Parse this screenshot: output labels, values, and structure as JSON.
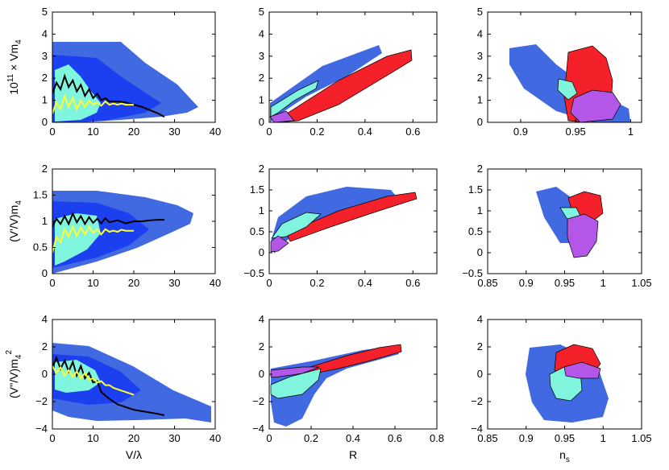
{
  "colors": {
    "blue_outer": "#4169e1",
    "blue_inner": "#1c3ff0",
    "cyan": "#7ff5de",
    "red": "#f4202a",
    "purple": "#b456e8",
    "line_black": "#000000",
    "line_yellow": "#ffff33",
    "frame": "#000000"
  },
  "chart_data": {
    "type": "grid-of-contour-panels",
    "rows": [
      {
        "ylabel": "10^11 × Vm_4",
        "ylabel_parts": {
          "base": "10",
          "sup": "11",
          "mid": " × Vm",
          "sub": "4"
        },
        "yticks": [
          "0",
          "1",
          "2",
          "3",
          "4",
          "5"
        ],
        "ylim": [
          0,
          5
        ],
        "col3_ylim": [
          0,
          5
        ],
        "col3_yticks": [
          "0",
          "1",
          "2",
          "3",
          "4",
          "5"
        ]
      },
      {
        "ylabel": "(V'/V)m_4",
        "ylabel_parts": {
          "base": "(V'/V)m",
          "sub": "4"
        },
        "yticks": [
          "0",
          "0.5",
          "1",
          "1.5",
          "2"
        ],
        "ylim": [
          0,
          2
        ],
        "col2_ylim": [
          -0.5,
          2
        ],
        "col2_yticks": [
          "−0.5",
          "0",
          "0.5",
          "1",
          "1.5",
          "2"
        ],
        "col3_ylim": [
          -0.5,
          2
        ],
        "col3_yticks": [
          "−0.5",
          "0",
          "0.5",
          "1",
          "1.5",
          "2"
        ]
      },
      {
        "ylabel": "(V''/V)m_4^2",
        "ylabel_parts": {
          "base": "(V''/V)m",
          "sub": "4",
          "sup": "2"
        },
        "yticks": [
          "−4",
          "−2",
          "0",
          "2",
          "4"
        ],
        "ylim": [
          -4,
          4
        ],
        "col3_ylim": [
          -4,
          4
        ],
        "col3_yticks": [
          "−4",
          "−2",
          "0",
          "2",
          "4"
        ]
      }
    ],
    "columns": [
      {
        "xlabel": "V/λ",
        "xlim": [
          0,
          40
        ],
        "xticks": [
          "0",
          "10",
          "20",
          "30",
          "40"
        ]
      },
      {
        "xlabel": "R",
        "xlim_rows12": [
          0,
          0.7
        ],
        "xticks_rows12": [
          "0",
          "0.2",
          "0.4",
          "0.6"
        ],
        "xlim_row3": [
          0,
          0.8
        ],
        "xticks_row3": [
          "0",
          "0.2",
          "0.4",
          "0.6",
          "0.8"
        ]
      },
      {
        "xlabel": "n_s",
        "xlabel_parts": {
          "base": "n",
          "sub": "s"
        },
        "xlim_row1": [
          0.87,
          1.01
        ],
        "xticks_row1": [
          "0.9",
          "0.95",
          "1"
        ],
        "xlim_rows23": [
          0.85,
          1.05
        ],
        "xticks_rows23": [
          "0.85",
          "0.9",
          "0.95",
          "1",
          "1.05"
        ]
      }
    ],
    "col1_traces": {
      "row1_black_x": [
        0,
        1,
        2,
        3,
        4,
        5,
        6,
        7,
        8,
        9,
        10,
        11,
        12,
        13,
        14,
        16,
        18,
        20,
        22,
        24,
        26,
        27.5
      ],
      "row1_black_y": [
        1.3,
        1.8,
        1.5,
        2.1,
        1.6,
        1.9,
        1.4,
        1.7,
        1.2,
        1.5,
        1.1,
        1.3,
        1.0,
        1.1,
        0.95,
        0.95,
        0.9,
        0.8,
        0.7,
        0.55,
        0.4,
        0.25
      ],
      "row1_yellow_x": [
        0,
        1,
        2,
        3,
        4,
        5,
        6,
        7,
        8,
        9,
        10,
        11,
        12,
        13,
        14,
        15,
        16,
        17,
        18,
        19,
        20
      ],
      "row1_yellow_y": [
        0.4,
        0.9,
        0.6,
        1.2,
        0.7,
        1.1,
        0.6,
        1.0,
        0.7,
        1.0,
        0.8,
        0.9,
        0.75,
        0.95,
        0.8,
        0.85,
        0.8,
        0.85,
        0.8,
        0.8,
        0.8
      ],
      "row2_black_x": [
        0,
        1,
        2,
        3,
        4,
        5,
        6,
        7,
        8,
        9,
        10,
        11,
        12,
        13,
        14,
        16,
        18,
        20,
        22,
        24,
        26,
        27.5
      ],
      "row2_black_y": [
        0.9,
        1.05,
        0.95,
        1.1,
        0.95,
        1.15,
        0.98,
        1.1,
        0.95,
        1.08,
        0.97,
        1.05,
        0.96,
        1.06,
        0.98,
        1.02,
        0.96,
        1.0,
        1.0,
        1.02,
        1.03,
        1.03
      ],
      "row2_yellow_x": [
        0,
        1,
        2,
        3,
        4,
        5,
        6,
        7,
        8,
        9,
        10,
        11,
        12,
        13,
        14,
        15,
        16,
        17,
        18,
        19,
        20
      ],
      "row2_yellow_y": [
        0.4,
        0.7,
        0.6,
        0.85,
        0.7,
        0.9,
        0.72,
        0.88,
        0.75,
        0.9,
        0.78,
        0.85,
        0.75,
        0.85,
        0.8,
        0.82,
        0.8,
        0.84,
        0.82,
        0.82,
        0.82
      ],
      "row3_black_x": [
        0,
        1,
        2,
        3,
        4,
        5,
        6,
        7,
        8,
        9,
        10,
        11,
        12,
        14,
        16,
        18,
        20,
        22,
        24,
        26,
        27.5
      ],
      "row3_black_y": [
        0.5,
        1.2,
        0.4,
        1.0,
        0.2,
        0.9,
        -0.1,
        0.6,
        -0.3,
        0.1,
        -0.6,
        -0.5,
        -1.3,
        -1.8,
        -2.2,
        -2.4,
        -2.6,
        -2.7,
        -2.8,
        -2.9,
        -3.0
      ],
      "row3_yellow_x": [
        0,
        1,
        2,
        3,
        4,
        5,
        6,
        7,
        8,
        9,
        10,
        11,
        12,
        13,
        14,
        15,
        16,
        17,
        18,
        19,
        20
      ],
      "row3_yellow_y": [
        0.6,
        0.1,
        0.5,
        -0.1,
        0.3,
        -0.2,
        0.2,
        -0.3,
        0.1,
        -0.4,
        -0.3,
        -0.6,
        -0.5,
        -0.8,
        -0.8,
        -1.0,
        -1.1,
        -1.2,
        -1.3,
        -1.4,
        -1.5
      ]
    }
  }
}
